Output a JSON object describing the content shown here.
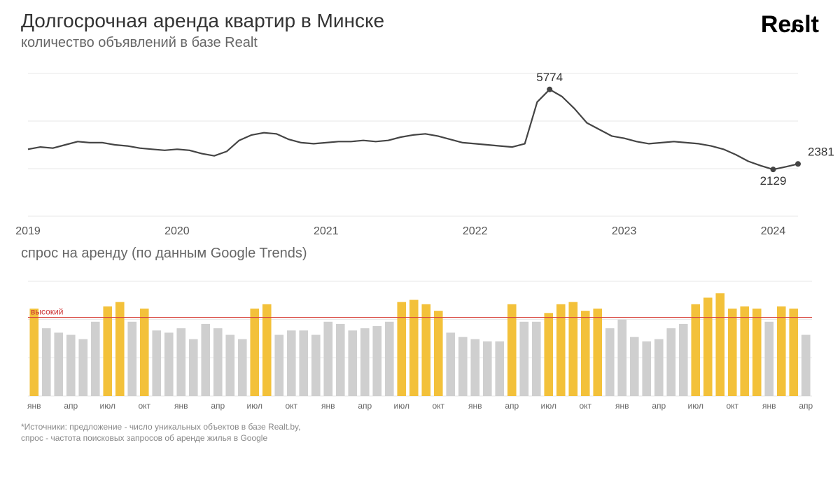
{
  "header": {
    "title": "Долгосрочная аренда квартир в Минске",
    "subtitle": "количество объявлений в базе Realt",
    "logo_text": "Realt"
  },
  "line_chart": {
    "type": "line",
    "background_color": "#ffffff",
    "grid_color": "#e7e7e7",
    "line_color": "#444444",
    "line_width": 2.2,
    "marker_color": "#444444",
    "marker_radius": 4,
    "ylim": [
      0,
      6500
    ],
    "x_start_year": 2019,
    "x_years": [
      "2019",
      "2020",
      "2021",
      "2022",
      "2023",
      "2024"
    ],
    "values": [
      3050,
      3150,
      3100,
      3250,
      3400,
      3350,
      3350,
      3250,
      3200,
      3100,
      3050,
      3000,
      3050,
      3000,
      2850,
      2750,
      2950,
      3450,
      3700,
      3800,
      3750,
      3500,
      3350,
      3300,
      3350,
      3400,
      3400,
      3450,
      3400,
      3450,
      3600,
      3700,
      3750,
      3650,
      3500,
      3350,
      3300,
      3250,
      3200,
      3150,
      3300,
      5200,
      5774,
      5450,
      4900,
      4250,
      3950,
      3650,
      3550,
      3400,
      3300,
      3350,
      3400,
      3350,
      3300,
      3200,
      3050,
      2800,
      2500,
      2300,
      2129,
      2250,
      2381
    ],
    "callouts": [
      {
        "index": 42,
        "value": 5774,
        "label": "5774",
        "pos": "above"
      },
      {
        "index": 60,
        "value": 2129,
        "label": "2129",
        "pos": "below"
      },
      {
        "index": 62,
        "value": 2381,
        "label": "2381",
        "pos": "right"
      }
    ],
    "marker_indices": [
      42,
      60,
      62
    ]
  },
  "bar_chart": {
    "type": "bar",
    "title": "спрос на аренду (по данным Google Trends)",
    "background_color": "#ffffff",
    "grid_color": "#e7e7e7",
    "bar_color_high": "#f3c13a",
    "bar_color_low": "#cfcfcf",
    "threshold_line_color": "#d8443c",
    "threshold_label": "высокий",
    "threshold_value": 72,
    "ylim": [
      0,
      105
    ],
    "values": [
      80,
      62,
      58,
      56,
      52,
      68,
      82,
      86,
      68,
      80,
      60,
      58,
      62,
      52,
      66,
      62,
      56,
      52,
      80,
      84,
      56,
      60,
      60,
      56,
      68,
      66,
      60,
      62,
      64,
      68,
      86,
      88,
      84,
      78,
      58,
      54,
      52,
      50,
      50,
      84,
      68,
      68,
      76,
      84,
      86,
      78,
      80,
      62,
      70,
      54,
      50,
      52,
      62,
      66,
      84,
      90,
      94,
      80,
      82,
      80,
      68,
      82,
      80,
      56
    ],
    "month_labels": [
      {
        "i": 0,
        "t": "янв"
      },
      {
        "i": 3,
        "t": "апр"
      },
      {
        "i": 6,
        "t": "июл"
      },
      {
        "i": 9,
        "t": "окт"
      },
      {
        "i": 12,
        "t": "янв"
      },
      {
        "i": 15,
        "t": "апр"
      },
      {
        "i": 18,
        "t": "июл"
      },
      {
        "i": 21,
        "t": "окт"
      },
      {
        "i": 24,
        "t": "янв"
      },
      {
        "i": 27,
        "t": "апр"
      },
      {
        "i": 30,
        "t": "июл"
      },
      {
        "i": 33,
        "t": "окт"
      },
      {
        "i": 36,
        "t": "янв"
      },
      {
        "i": 39,
        "t": "апр"
      },
      {
        "i": 42,
        "t": "июл"
      },
      {
        "i": 45,
        "t": "окт"
      },
      {
        "i": 48,
        "t": "янв"
      },
      {
        "i": 51,
        "t": "апр"
      },
      {
        "i": 54,
        "t": "июл"
      },
      {
        "i": 57,
        "t": "окт"
      },
      {
        "i": 60,
        "t": "янв"
      },
      {
        "i": 63,
        "t": "апр"
      }
    ]
  },
  "footer": {
    "line1": "*Источники: предложение - число уникальных объектов в базе Realt.by,",
    "line2": "спрос - частота поисковых запросов об аренде жилья в Google"
  }
}
